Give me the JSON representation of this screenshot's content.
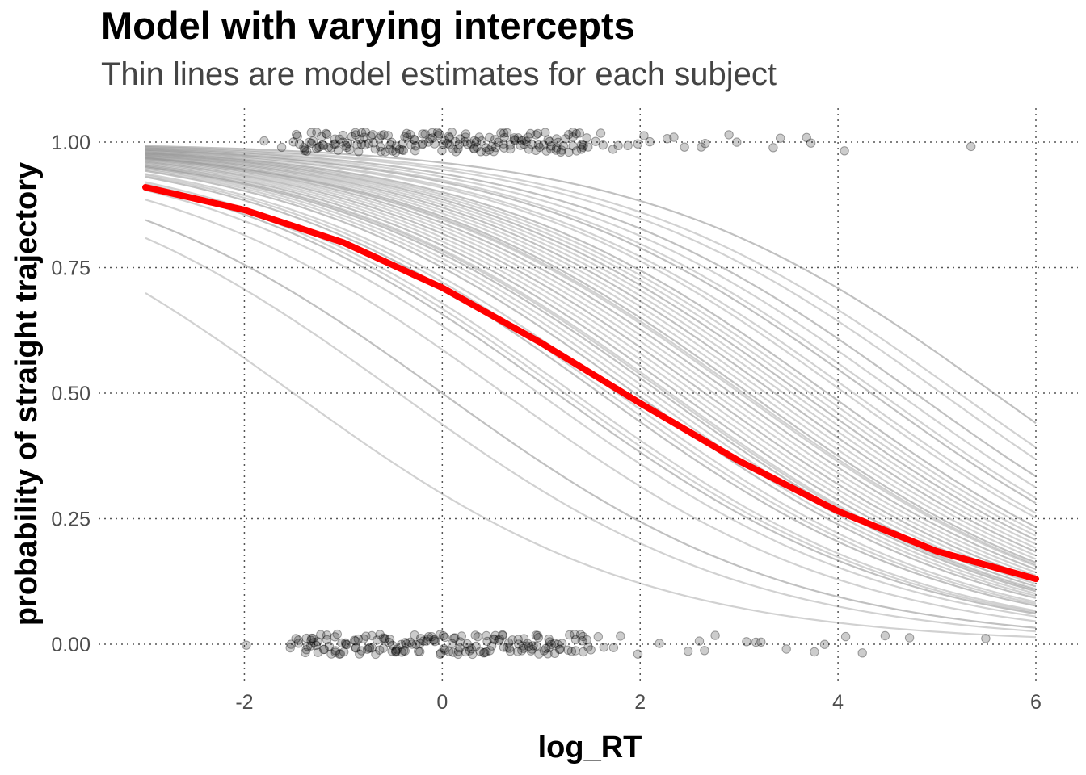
{
  "chart_data": {
    "type": "line",
    "title": "Model with varying intercepts",
    "subtitle": "Thin lines are model estimates for each subject",
    "xlabel": "log_RT",
    "ylabel": "probability of straight trajectory",
    "xlim": [
      -3,
      6
    ],
    "ylim": [
      0,
      1
    ],
    "x_ticks": [
      -2,
      0,
      2,
      4,
      6
    ],
    "y_ticks": [
      0,
      0.25,
      0.5,
      0.75,
      1
    ],
    "x_tick_labels": [
      "-2",
      "0",
      "2",
      "4",
      "6"
    ],
    "y_tick_labels": [
      "0.00",
      "0.25",
      "0.50",
      "0.75",
      "1.00"
    ],
    "grid": true,
    "population_curve": {
      "color": "#ff0000",
      "x": [
        -3,
        -2,
        -1,
        0,
        1,
        2,
        3,
        4,
        5,
        6
      ],
      "y": [
        0.91,
        0.865,
        0.8,
        0.71,
        0.6,
        0.48,
        0.365,
        0.265,
        0.185,
        0.13
      ]
    },
    "subject_curves": {
      "color": "#8c8c8c",
      "slope": -0.565,
      "intercepts": [
        3.15,
        2.95,
        2.85,
        2.7,
        2.6,
        2.5,
        2.45,
        2.35,
        2.3,
        2.2,
        2.15,
        2.1,
        2.05,
        2.0,
        1.95,
        1.9,
        1.85,
        1.8,
        1.75,
        1.72,
        1.7,
        1.65,
        1.6,
        1.55,
        1.5,
        1.45,
        1.4,
        1.35,
        1.3,
        1.28,
        1.25,
        1.2,
        1.15,
        1.1,
        1.0,
        0.95,
        0.9,
        0.75,
        0.7,
        0.65,
        0.55,
        0.35,
        0.0,
        -0.25,
        -0.85
      ]
    },
    "observations": {
      "color": "#000000",
      "y1_x": [
        -1.8,
        -1.6,
        -1.5,
        -1.45,
        -1.4,
        -1.35,
        -1.3,
        -1.25,
        -1.2,
        -1.15,
        -1.1,
        -1.05,
        -1.0,
        -0.95,
        -0.9,
        -0.85,
        -0.8,
        -0.75,
        -0.7,
        -0.65,
        -0.6,
        -0.55,
        -0.5,
        -0.45,
        -0.4,
        -0.35,
        -0.3,
        -0.25,
        -0.2,
        -0.15,
        -0.1,
        -0.05,
        0.0,
        0.05,
        0.1,
        0.15,
        0.2,
        0.25,
        0.3,
        0.35,
        0.4,
        0.45,
        0.5,
        0.55,
        0.6,
        0.65,
        0.7,
        0.75,
        0.8,
        0.85,
        0.9,
        0.95,
        1.0,
        1.05,
        1.1,
        1.15,
        1.2,
        1.25,
        1.3,
        1.35,
        1.4,
        1.45,
        1.5,
        1.55,
        1.6,
        1.65,
        1.75,
        1.8,
        1.9,
        2.0,
        2.05,
        2.1,
        2.25,
        2.35,
        2.45,
        2.6,
        2.65,
        2.9,
        3.0,
        3.35,
        3.4,
        3.7,
        3.75,
        4.05,
        5.35
      ],
      "y0_x": [
        -1.95,
        -1.55,
        -1.5,
        -1.45,
        -1.4,
        -1.35,
        -1.3,
        -1.25,
        -1.2,
        -1.15,
        -1.1,
        -1.05,
        -1.0,
        -0.95,
        -0.9,
        -0.85,
        -0.8,
        -0.75,
        -0.7,
        -0.65,
        -0.6,
        -0.55,
        -0.5,
        -0.45,
        -0.4,
        -0.35,
        -0.3,
        -0.25,
        -0.2,
        -0.15,
        -0.1,
        -0.05,
        0.0,
        0.05,
        0.1,
        0.15,
        0.2,
        0.25,
        0.3,
        0.35,
        0.4,
        0.45,
        0.5,
        0.55,
        0.6,
        0.65,
        0.7,
        0.75,
        0.8,
        0.85,
        0.9,
        0.95,
        1.0,
        1.05,
        1.1,
        1.15,
        1.2,
        1.3,
        1.35,
        1.4,
        1.45,
        1.5,
        1.6,
        1.65,
        1.75,
        1.8,
        1.95,
        2.2,
        2.5,
        2.6,
        2.65,
        2.75,
        3.1,
        3.15,
        3.25,
        3.5,
        3.75,
        3.85,
        4.05,
        4.25,
        4.5,
        4.7,
        5.5
      ]
    }
  }
}
